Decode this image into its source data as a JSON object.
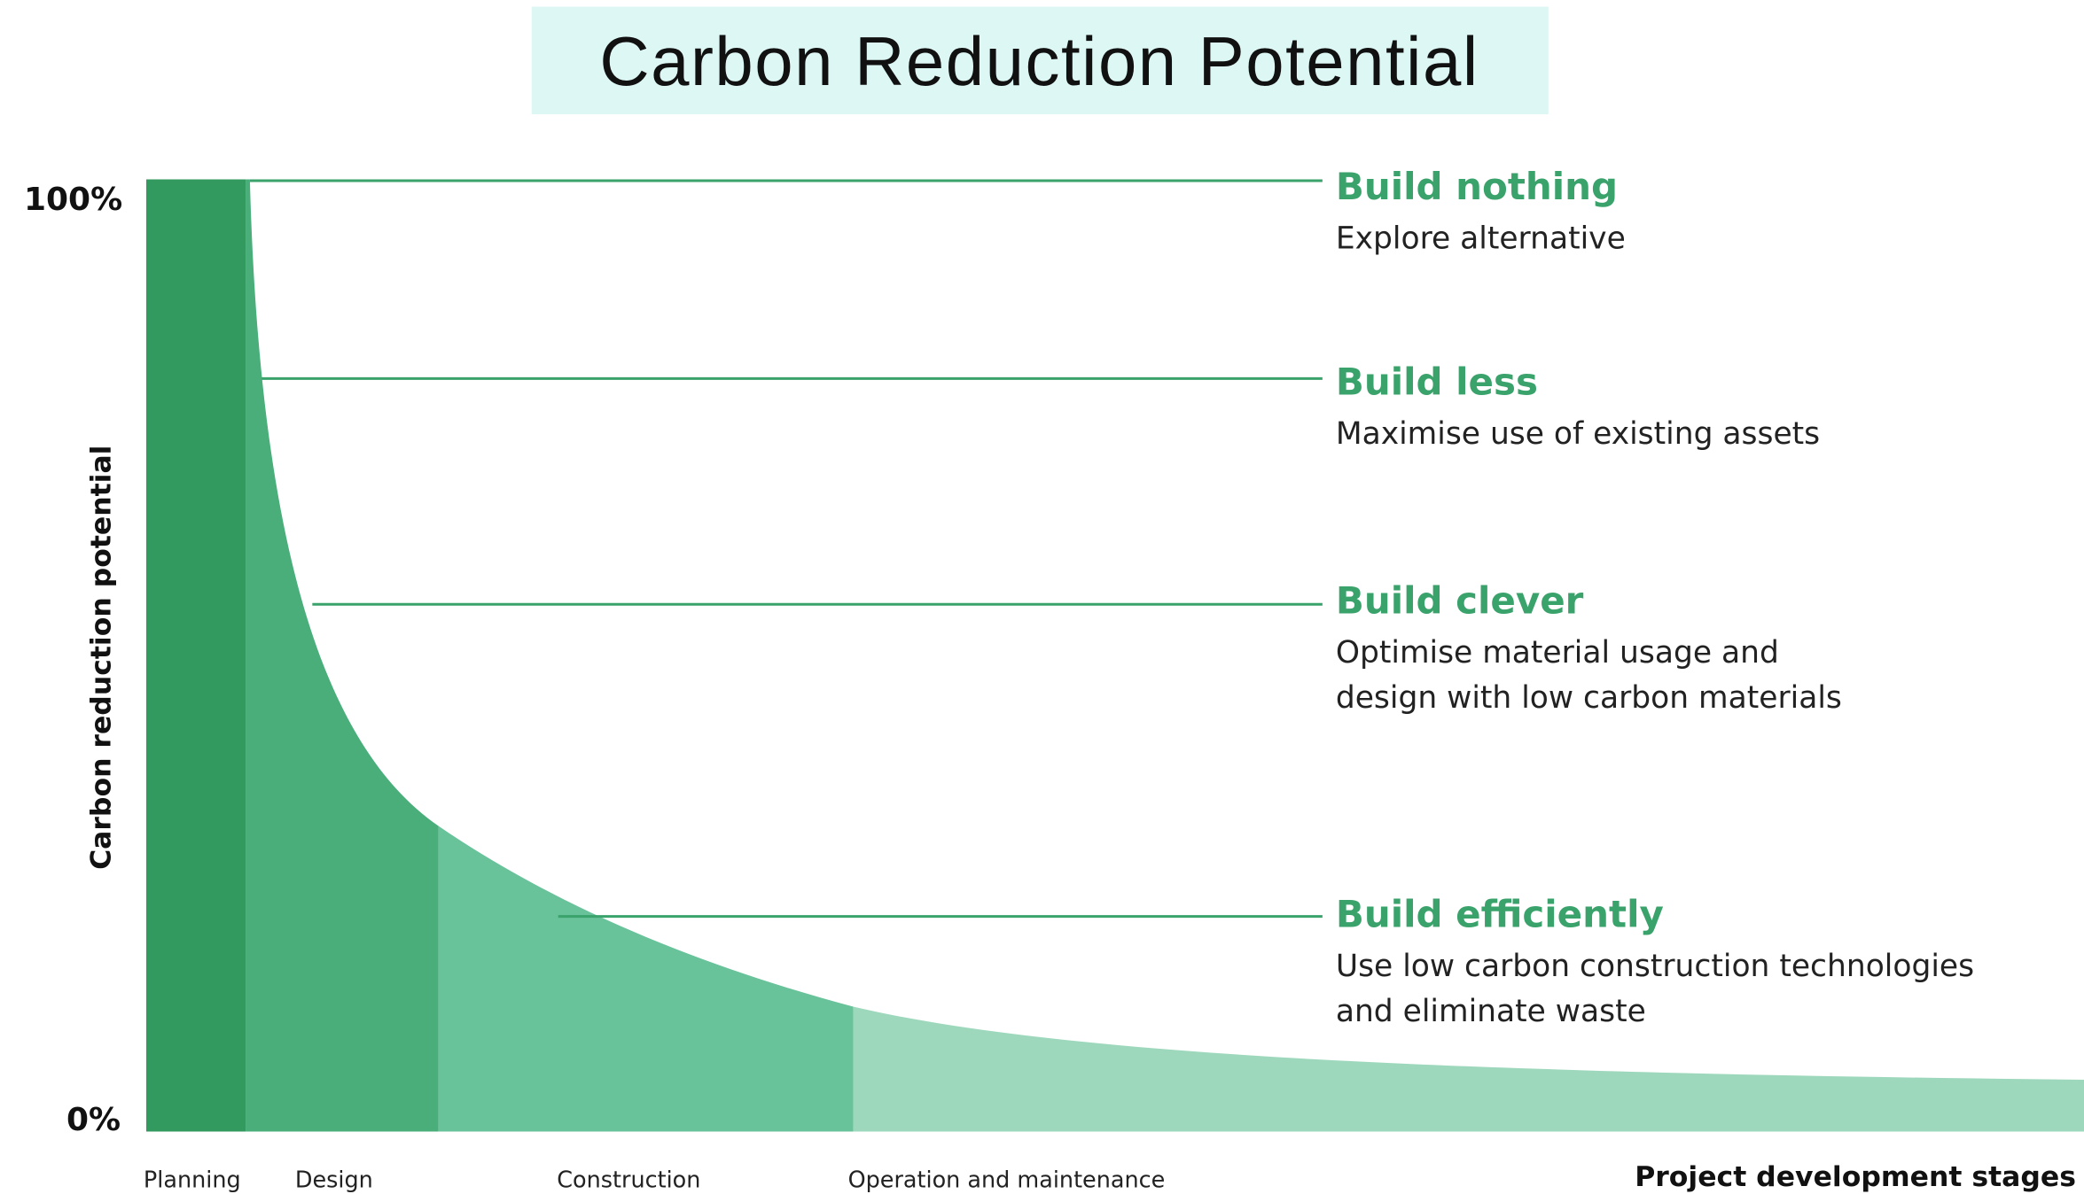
{
  "title": "Carbon Reduction Potential",
  "y_axis": {
    "label": "Carbon reduction potential",
    "top": "100%",
    "bottom": "0%"
  },
  "x_axis": {
    "label": "Project development stages",
    "stages": [
      "Planning",
      "Design",
      "Construction",
      "Operation and maintenance"
    ]
  },
  "annotations": [
    {
      "heading": "Build nothing",
      "lines": [
        "Explore alternative"
      ]
    },
    {
      "heading": "Build less",
      "lines": [
        "Maximise use of existing assets"
      ]
    },
    {
      "heading": "Build clever",
      "lines": [
        "Optimise material usage and",
        "design with low carbon materials"
      ]
    },
    {
      "heading": "Build efficiently",
      "lines": [
        "Use low carbon construction technologies",
        "and eliminate waste"
      ]
    }
  ]
}
